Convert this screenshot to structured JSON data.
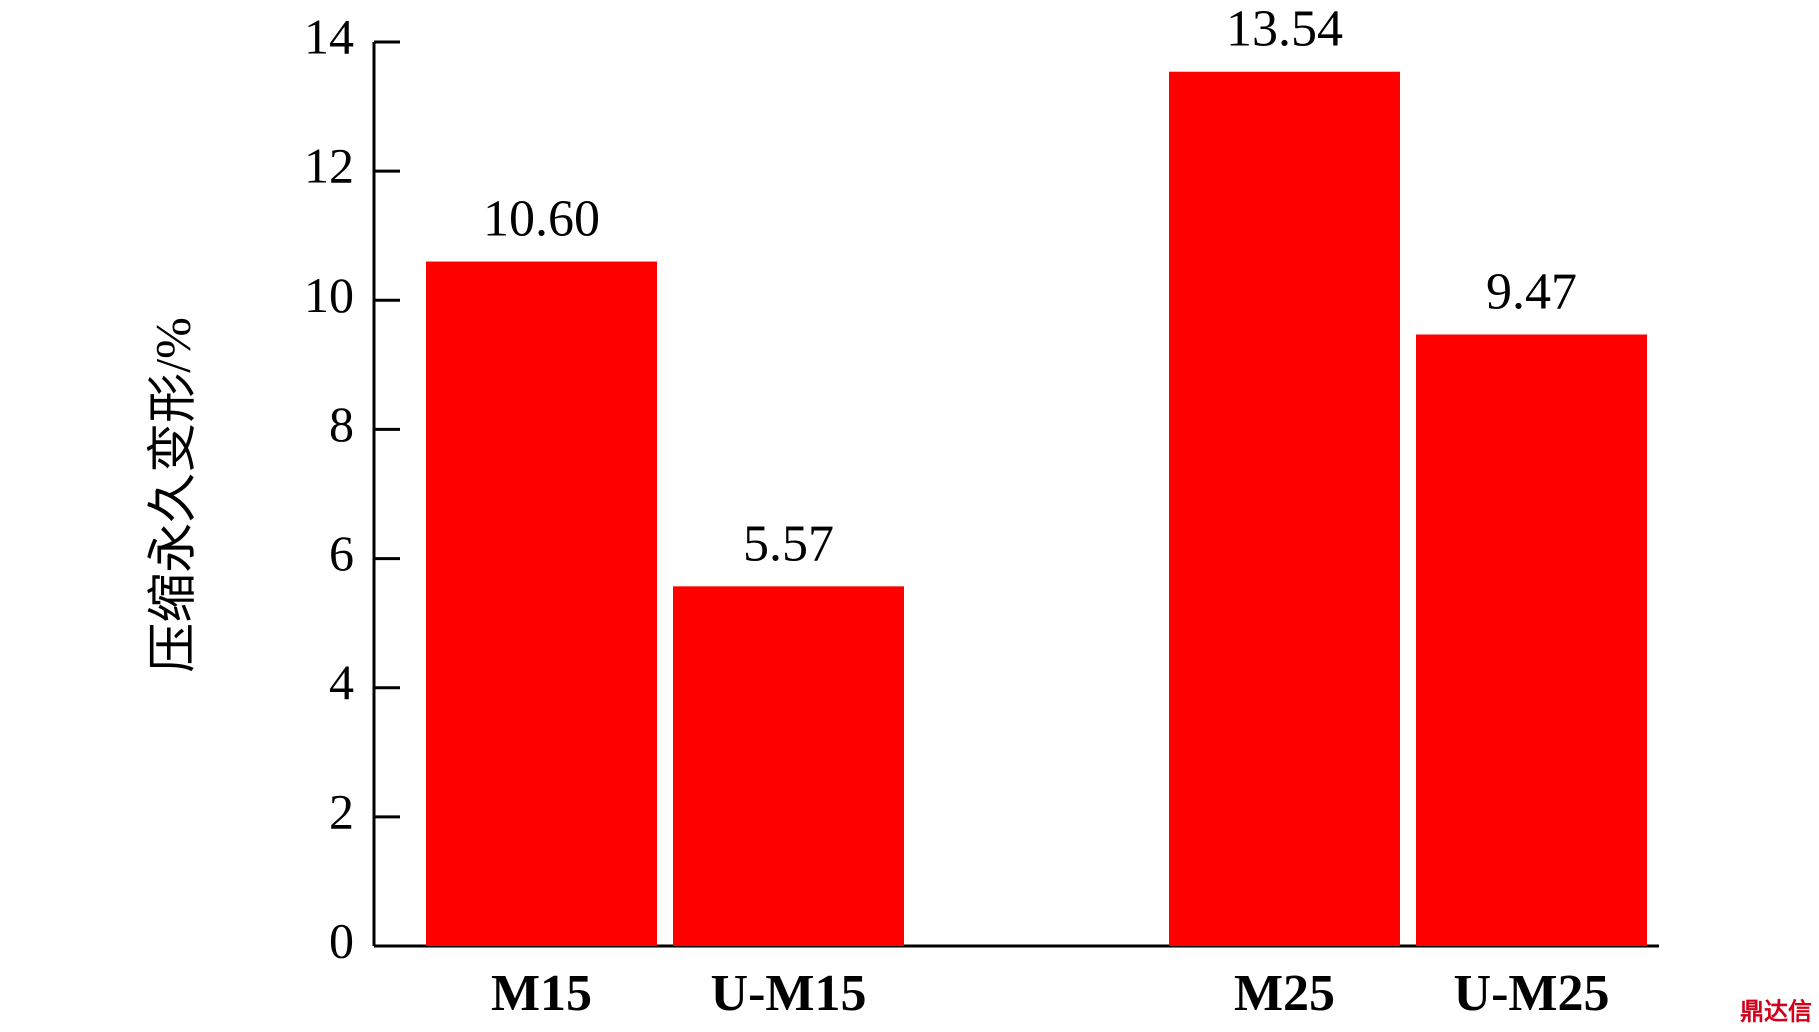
{
  "chart_data": {
    "type": "bar",
    "y_label": "压缩永久变形/%",
    "categories": [
      "M15",
      "U-M15",
      "M25",
      "U-M25"
    ],
    "values": [
      10.6,
      5.57,
      13.54,
      9.47
    ],
    "value_labels": [
      "10.60",
      "5.57",
      "13.54",
      "9.47"
    ],
    "color": "#ff0000",
    "ylim": [
      0,
      14
    ],
    "yticks": [
      0,
      2,
      4,
      6,
      8,
      10,
      12,
      14
    ],
    "grid": false,
    "watermark": "鼎达信"
  }
}
